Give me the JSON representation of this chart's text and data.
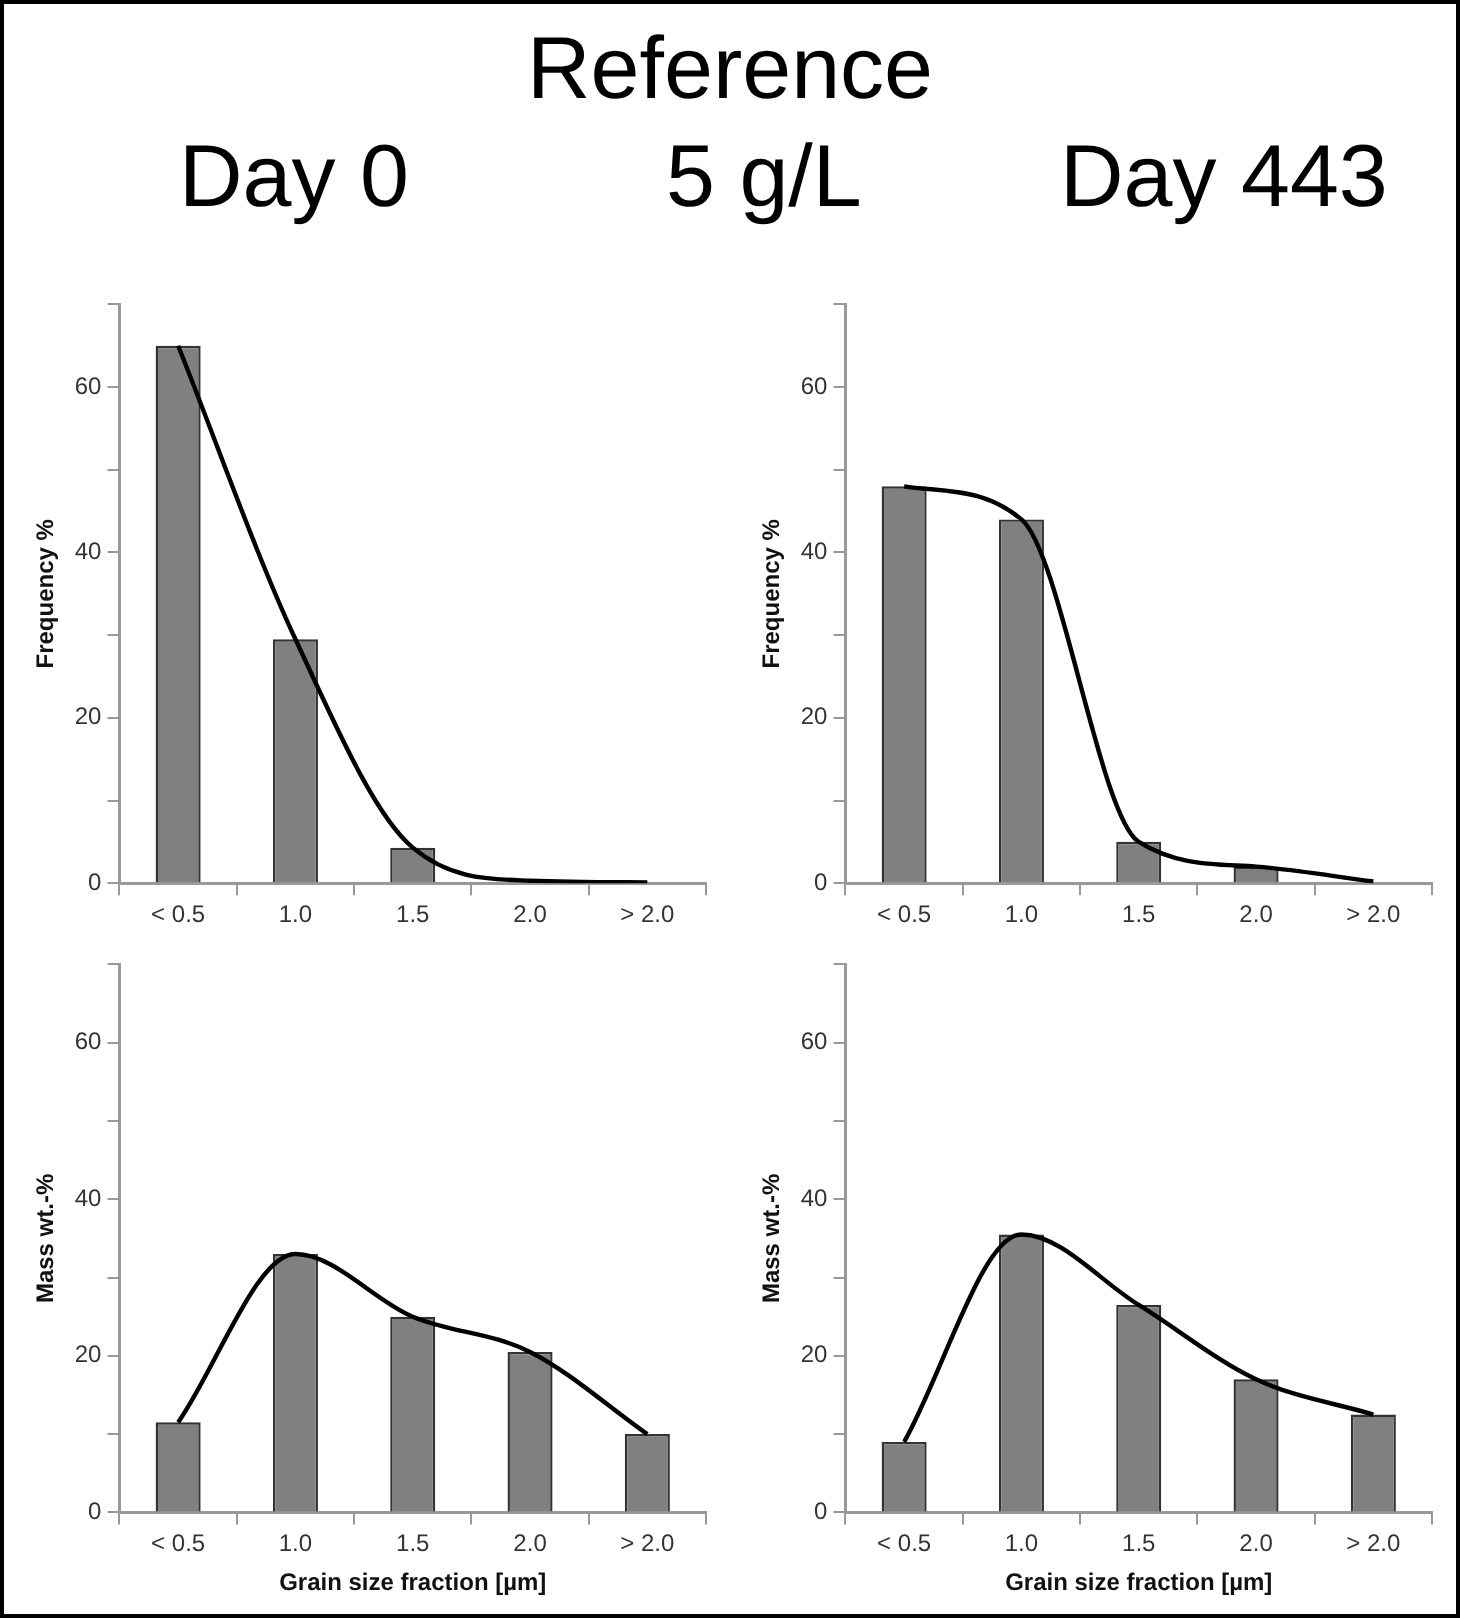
{
  "chart_data": [
    {
      "type": "bar",
      "title": "Day 0",
      "annotations": [
        "Reference",
        "5 g/L"
      ],
      "ylabel": "Frequency %",
      "categories": [
        "< 0.5",
        "1.0",
        "1.5",
        "2.0",
        "> 2.0"
      ],
      "series": [
        {
          "color": "#808080",
          "values": [
            65,
            29.5,
            4.3,
            null,
            0.1
          ]
        },
        {
          "type": "line",
          "color": "#000000",
          "values": [
            65,
            29.5,
            4.3,
            0.3,
            0.1
          ]
        }
      ],
      "ylim": [
        0,
        70
      ],
      "yticks": [
        0,
        {
          "value": 10,
          "label": null
        },
        20,
        {
          "value": 30,
          "label": null
        },
        40,
        {
          "value": 50,
          "label": null
        },
        60,
        {
          "value": 70,
          "label": null
        }
      ],
      "grid": false,
      "legend": false
    },
    {
      "type": "bar",
      "title": "Day 443",
      "ylabel": "Frequency %",
      "categories": [
        "< 0.5",
        "1.0",
        "1.5",
        "2.0",
        "> 2.0"
      ],
      "series": [
        {
          "color": "#808080",
          "values": [
            48,
            44,
            5,
            2,
            null
          ]
        },
        {
          "type": "line",
          "color": "#000000",
          "values": [
            48,
            44,
            5,
            2,
            0.2
          ]
        }
      ],
      "ylim": [
        0,
        70
      ],
      "yticks": [
        0,
        {
          "value": 10,
          "label": null
        },
        20,
        {
          "value": 30,
          "label": null
        },
        40,
        {
          "value": 50,
          "label": null
        },
        60,
        {
          "value": 70,
          "label": null
        }
      ],
      "grid": false,
      "legend": false
    },
    {
      "type": "bar",
      "ylabel": "Mass wt.-%",
      "xlabel": "Grain size fraction [µm]",
      "categories": [
        "< 0.5",
        "1.0",
        "1.5",
        "2.0",
        "> 2.0"
      ],
      "series": [
        {
          "color": "#808080",
          "values": [
            11.5,
            33,
            25,
            20.5,
            10
          ]
        },
        {
          "type": "line",
          "color": "#000000",
          "values": [
            11.5,
            33,
            25,
            20.5,
            10
          ]
        }
      ],
      "ylim": [
        0,
        70
      ],
      "yticks": [
        0,
        {
          "value": 10,
          "label": null
        },
        20,
        {
          "value": 30,
          "label": null
        },
        40,
        {
          "value": 50,
          "label": null
        },
        60,
        {
          "value": 70,
          "label": null
        }
      ],
      "grid": false,
      "legend": false
    },
    {
      "type": "bar",
      "ylabel": "Mass wt.-%",
      "xlabel": "Grain size fraction [µm]",
      "categories": [
        "< 0.5",
        "1.0",
        "1.5",
        "2.0",
        "> 2.0"
      ],
      "series": [
        {
          "color": "#808080",
          "values": [
            9,
            35.5,
            26.5,
            17,
            12.5
          ]
        },
        {
          "type": "line",
          "color": "#000000",
          "values": [
            9,
            35.5,
            26.5,
            17,
            12.5
          ]
        }
      ],
      "ylim": [
        0,
        70
      ],
      "yticks": [
        0,
        {
          "value": 10,
          "label": null
        },
        20,
        {
          "value": 30,
          "label": null
        },
        40,
        {
          "value": 50,
          "label": null
        },
        60,
        {
          "value": 70,
          "label": null
        }
      ],
      "grid": false,
      "legend": false
    }
  ]
}
